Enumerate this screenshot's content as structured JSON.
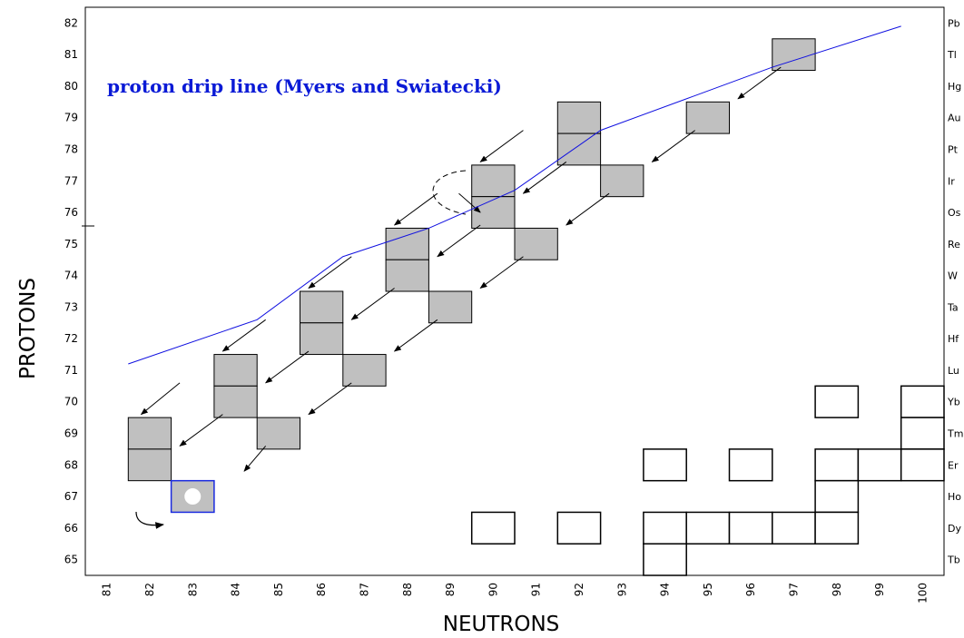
{
  "chart_data": {
    "type": "scatter",
    "xlabel": "NEUTRONS",
    "ylabel": "PROTONS",
    "xlim": [
      80.5,
      100.5
    ],
    "ylim": [
      64.5,
      82.5
    ],
    "x_ticks": [
      81,
      82,
      83,
      84,
      85,
      86,
      87,
      88,
      89,
      90,
      91,
      92,
      93,
      94,
      95,
      96,
      97,
      98,
      99,
      100
    ],
    "y_ticks": [
      65,
      66,
      67,
      68,
      69,
      70,
      71,
      72,
      73,
      74,
      75,
      76,
      77,
      78,
      79,
      80,
      81,
      82
    ],
    "element_labels": [
      {
        "z": 82,
        "symbol": "Pb"
      },
      {
        "z": 81,
        "symbol": "Tl"
      },
      {
        "z": 80,
        "symbol": "Hg"
      },
      {
        "z": 79,
        "symbol": "Au"
      },
      {
        "z": 78,
        "symbol": "Pt"
      },
      {
        "z": 77,
        "symbol": "Ir"
      },
      {
        "z": 76,
        "symbol": "Os"
      },
      {
        "z": 75,
        "symbol": "Re"
      },
      {
        "z": 74,
        "symbol": "W"
      },
      {
        "z": 73,
        "symbol": "Ta"
      },
      {
        "z": 72,
        "symbol": "Hf"
      },
      {
        "z": 71,
        "symbol": "Lu"
      },
      {
        "z": 70,
        "symbol": "Yb"
      },
      {
        "z": 69,
        "symbol": "Tm"
      },
      {
        "z": 68,
        "symbol": "Er"
      },
      {
        "z": 67,
        "symbol": "Ho"
      },
      {
        "z": 66,
        "symbol": "Dy"
      },
      {
        "z": 65,
        "symbol": "Tb"
      }
    ],
    "annotation": "proton drip line (Myers and Swiatecki)",
    "drip_line": {
      "color": "#1010e0",
      "points": [
        [
          81.5,
          71.2
        ],
        [
          84.5,
          72.6
        ],
        [
          86.5,
          74.6
        ],
        [
          88.5,
          75.5
        ],
        [
          90.5,
          76.7
        ],
        [
          92.5,
          78.6
        ],
        [
          94.5,
          79.6
        ],
        [
          96.5,
          80.6
        ],
        [
          99.5,
          81.9
        ]
      ]
    },
    "proton_emitters": {
      "fill": "#c0c0c0",
      "points": [
        [
          82,
          69
        ],
        [
          82,
          68
        ],
        [
          84,
          71
        ],
        [
          84,
          70
        ],
        [
          85,
          69
        ],
        [
          86,
          73
        ],
        [
          86,
          72
        ],
        [
          87,
          71
        ],
        [
          88,
          75
        ],
        [
          88,
          74
        ],
        [
          89,
          73
        ],
        [
          90,
          77
        ],
        [
          90,
          76
        ],
        [
          91,
          75
        ],
        [
          92,
          79
        ],
        [
          92,
          78
        ],
        [
          93,
          77
        ],
        [
          95,
          79
        ],
        [
          97,
          81
        ]
      ]
    },
    "special_nucleus": {
      "n": 83,
      "z": 67,
      "border": "#1a2adf"
    },
    "known_nuclei": {
      "points": [
        [
          98,
          70
        ],
        [
          100,
          70
        ],
        [
          100,
          69
        ],
        [
          94,
          68
        ],
        [
          96,
          68
        ],
        [
          98,
          68
        ],
        [
          99,
          68
        ],
        [
          100,
          68
        ],
        [
          98,
          67
        ],
        [
          90,
          66
        ],
        [
          92,
          66
        ],
        [
          94,
          66
        ],
        [
          95,
          66
        ],
        [
          96,
          66
        ],
        [
          97,
          66
        ],
        [
          98,
          66
        ],
        [
          94,
          65
        ]
      ]
    },
    "decay_arrows": [
      [
        [
          84.7,
          68.6
        ],
        [
          84.2,
          67.8
        ]
      ],
      [
        [
          83.7,
          69.6
        ],
        [
          82.7,
          68.6
        ]
      ],
      [
        [
          82.7,
          70.6
        ],
        [
          81.8,
          69.6
        ]
      ],
      [
        [
          86.7,
          70.6
        ],
        [
          85.7,
          69.6
        ]
      ],
      [
        [
          85.7,
          71.6
        ],
        [
          84.7,
          70.6
        ]
      ],
      [
        [
          84.7,
          72.6
        ],
        [
          83.7,
          71.6
        ]
      ],
      [
        [
          88.7,
          72.6
        ],
        [
          87.7,
          71.6
        ]
      ],
      [
        [
          87.7,
          73.6
        ],
        [
          86.7,
          72.6
        ]
      ],
      [
        [
          86.7,
          74.6
        ],
        [
          85.7,
          73.6
        ]
      ],
      [
        [
          90.7,
          74.6
        ],
        [
          89.7,
          73.6
        ]
      ],
      [
        [
          89.7,
          75.6
        ],
        [
          88.7,
          74.6
        ]
      ],
      [
        [
          88.7,
          76.6
        ],
        [
          87.7,
          75.6
        ]
      ],
      [
        [
          92.7,
          76.6
        ],
        [
          91.7,
          75.6
        ]
      ],
      [
        [
          91.7,
          77.6
        ],
        [
          90.7,
          76.6
        ]
      ],
      [
        [
          90.7,
          78.6
        ],
        [
          89.7,
          77.6
        ]
      ],
      [
        [
          94.7,
          78.6
        ],
        [
          93.7,
          77.6
        ]
      ],
      [
        [
          96.7,
          80.6
        ],
        [
          95.7,
          79.6
        ]
      ],
      [
        [
          89.2,
          76.6
        ],
        [
          89.7,
          76.0
        ]
      ]
    ]
  }
}
